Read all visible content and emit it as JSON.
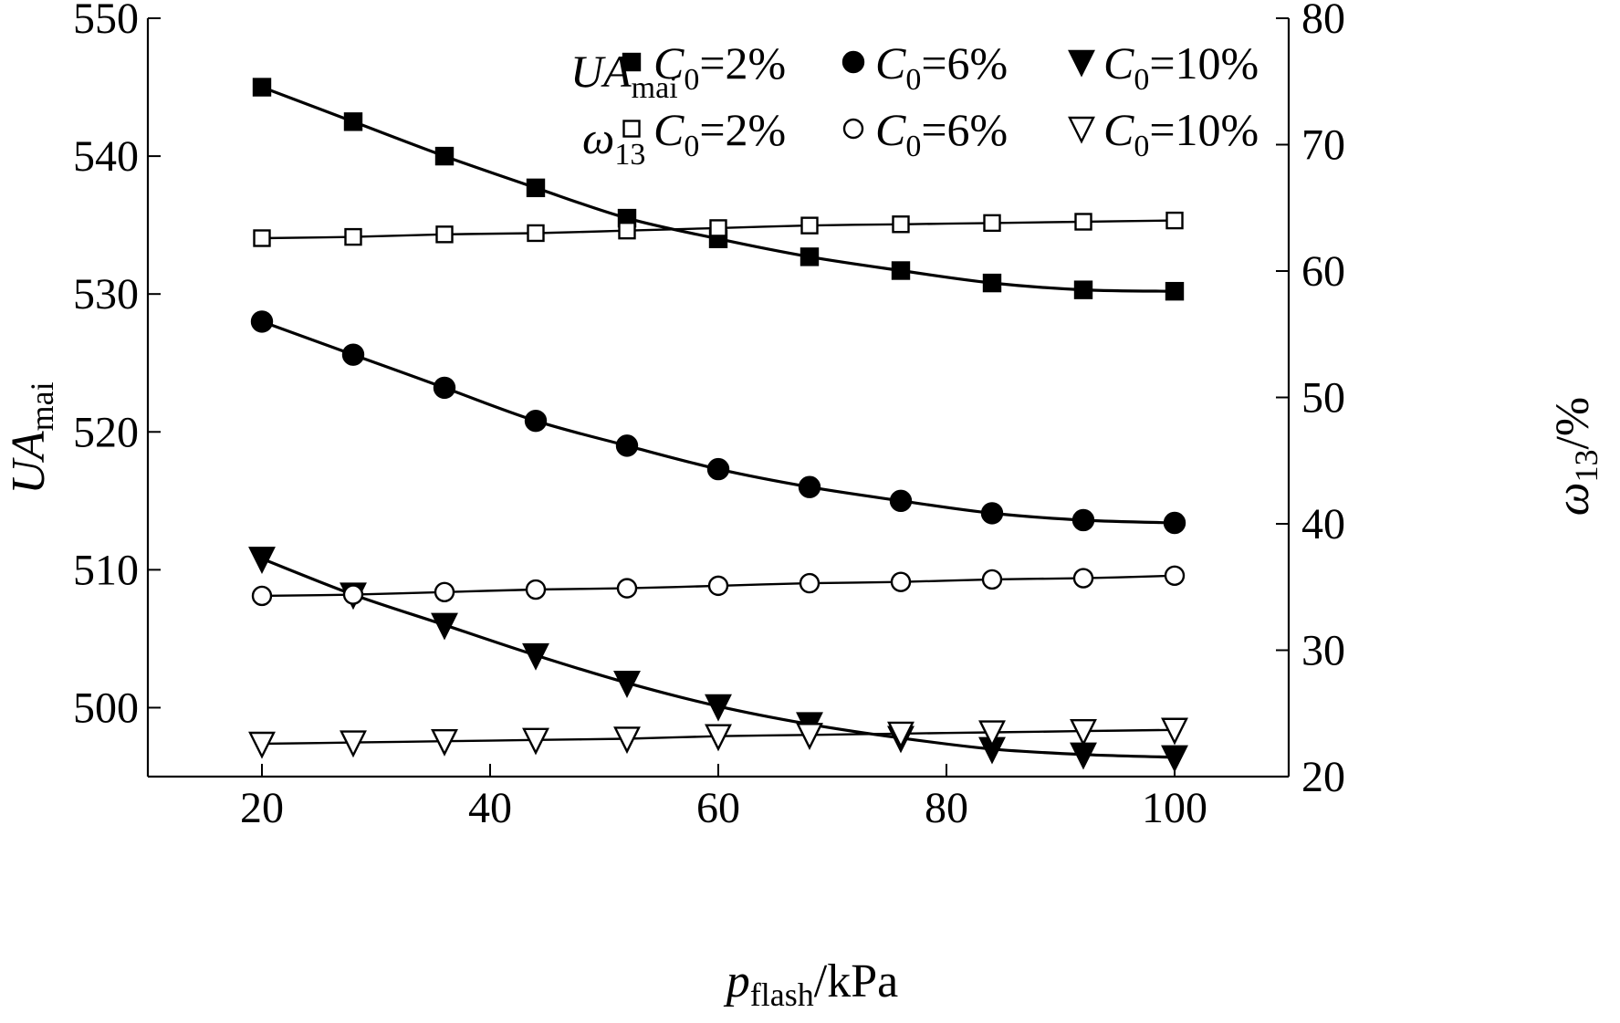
{
  "chart_data": {
    "type": "line",
    "x_axis": {
      "label_main": "p",
      "label_sub": "flash",
      "label_unit": "/kPa",
      "range": [
        10,
        110
      ],
      "ticks": [
        20,
        40,
        60,
        80,
        100
      ]
    },
    "y_left": {
      "label_main": "UA",
      "label_sub": "mai",
      "range": [
        495,
        550
      ],
      "ticks": [
        500,
        510,
        520,
        530,
        540,
        550
      ]
    },
    "y_right": {
      "label_main": "ω",
      "label_sub": "13",
      "label_unit": "/%",
      "range": [
        20,
        80
      ],
      "ticks": [
        20,
        30,
        40,
        50,
        60,
        70,
        80
      ]
    },
    "legend": {
      "position": "top-right",
      "group_ua_main": "UA",
      "group_ua_sub": "mai",
      "group_omega_main": "ω",
      "group_omega_sub": "13",
      "entry_main": "C",
      "entry_sub": "0",
      "entries": [
        "=2%",
        "=6%",
        "=10%"
      ]
    },
    "x": [
      20,
      28,
      36,
      44,
      52,
      60,
      68,
      76,
      84,
      92,
      100
    ],
    "series": [
      {
        "group": "UA",
        "axis": "left",
        "marker": "square-filled",
        "c0": "2%",
        "values": [
          545,
          542.5,
          540,
          537.7,
          535.5,
          534,
          532.7,
          531.7,
          530.8,
          530.3,
          530.2
        ]
      },
      {
        "group": "UA",
        "axis": "left",
        "marker": "circle-filled",
        "c0": "6%",
        "values": [
          528,
          525.6,
          523.2,
          520.8,
          519,
          517.3,
          516,
          515,
          514.1,
          513.6,
          513.4
        ]
      },
      {
        "group": "UA",
        "axis": "left",
        "marker": "triangle-down-filled",
        "c0": "10%",
        "values": [
          510.8,
          508.2,
          506,
          503.8,
          501.8,
          500.1,
          498.8,
          497.8,
          497,
          496.6,
          496.4
        ]
      },
      {
        "group": "omega",
        "axis": "right",
        "marker": "square-open",
        "c0": "2%",
        "values": [
          62.6,
          62.7,
          62.9,
          63.0,
          63.2,
          63.4,
          63.6,
          63.7,
          63.8,
          63.9,
          64.0
        ]
      },
      {
        "group": "omega",
        "axis": "right",
        "marker": "circle-open",
        "c0": "6%",
        "values": [
          34.3,
          34.4,
          34.6,
          34.8,
          34.9,
          35.1,
          35.3,
          35.4,
          35.6,
          35.7,
          35.9
        ]
      },
      {
        "group": "omega",
        "axis": "right",
        "marker": "triangle-down-open",
        "c0": "10%",
        "values": [
          22.6,
          22.7,
          22.8,
          22.9,
          23.0,
          23.2,
          23.3,
          23.4,
          23.5,
          23.6,
          23.7
        ]
      }
    ]
  }
}
